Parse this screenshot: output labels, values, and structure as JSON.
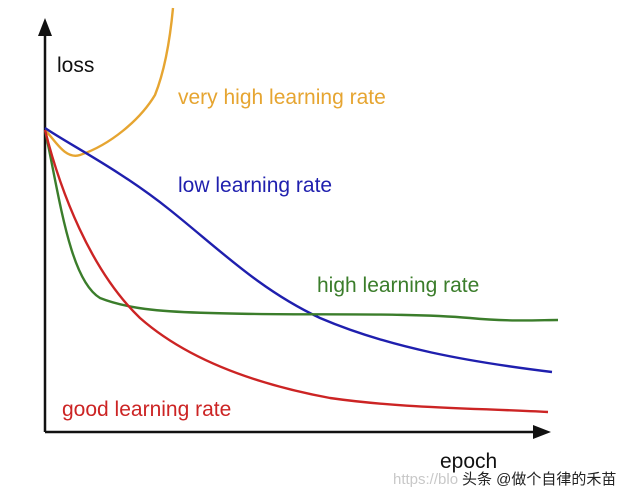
{
  "axes": {
    "y_label": "loss",
    "x_label": "epoch"
  },
  "curves": [
    {
      "label": "very high learning rate",
      "color": "#e6a531"
    },
    {
      "label": "low learning rate",
      "color": "#1f1fae"
    },
    {
      "label": "high learning rate",
      "color": "#3b7d2b"
    },
    {
      "label": "good learning rate",
      "color": "#cc2424"
    }
  ],
  "watermark": {
    "url": "https://blo",
    "text": "头条 @做个自律的禾苗"
  }
}
